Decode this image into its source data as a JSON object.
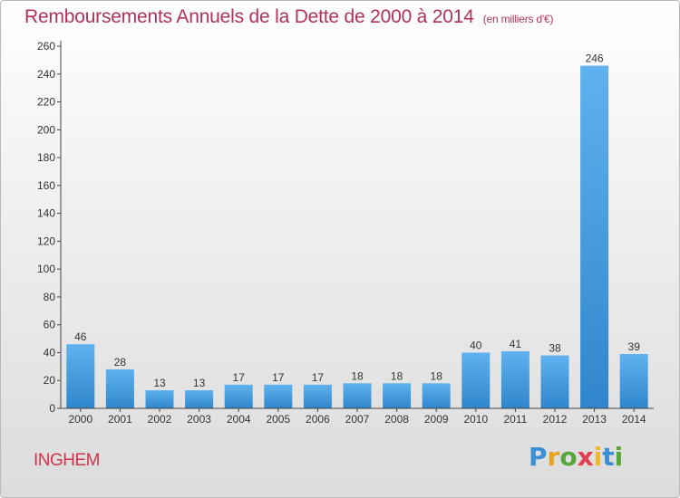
{
  "title": "Remboursements Annuels de la Dette de 2000 à 2014",
  "title_unit": "(en milliers d'€)",
  "commune": "INGHEM",
  "logo": {
    "text": "Proxiti",
    "letter_colors": [
      "#3b8fd6",
      "#e8a41f",
      "#59a63a",
      "#e0404f",
      "#f0b62c",
      "#3b8fd6",
      "#59a63a"
    ]
  },
  "colors": {
    "title": "#b0325a",
    "commune": "#d0354f",
    "bar_light": "#5fb2ee",
    "bar_dark": "#2f86cc",
    "axis": "#444444"
  },
  "chart_data": {
    "type": "bar",
    "categories": [
      "2000",
      "2001",
      "2002",
      "2003",
      "2004",
      "2005",
      "2006",
      "2007",
      "2008",
      "2009",
      "2010",
      "2011",
      "2012",
      "2013",
      "2014"
    ],
    "values": [
      46,
      28,
      13,
      13,
      17,
      17,
      17,
      18,
      18,
      18,
      40,
      41,
      38,
      246,
      39
    ],
    "ylim": [
      0,
      260
    ],
    "yticks": [
      0,
      20,
      40,
      60,
      80,
      100,
      120,
      140,
      160,
      180,
      200,
      220,
      240,
      260
    ],
    "grid": false,
    "data_labels": true
  }
}
